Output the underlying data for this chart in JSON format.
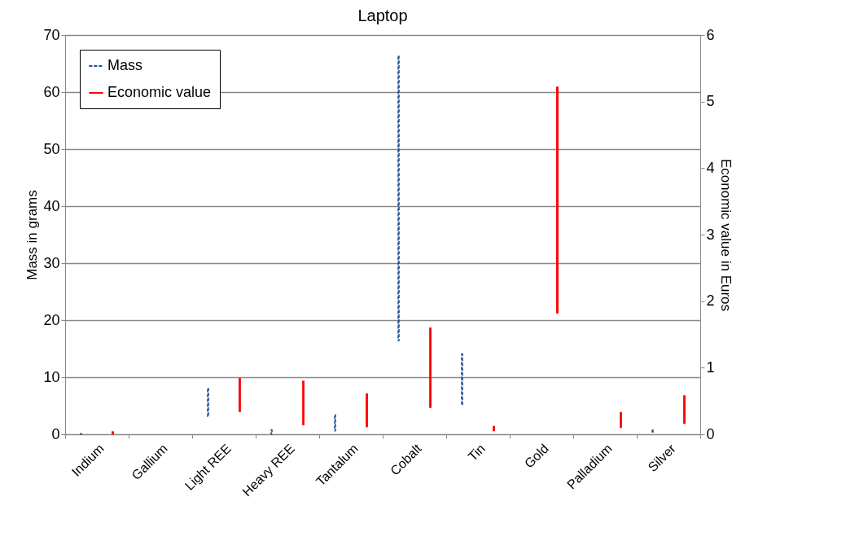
{
  "chart_data": {
    "type": "bar",
    "title": "Laptop",
    "ylabel": "Mass in grams",
    "y2label": "Economic value  in Euros",
    "categories": [
      "Indium",
      "Gallium",
      "Light REE",
      "Heavy REE",
      "Tantalum",
      "Cobalt",
      "Tin",
      "Gold",
      "Palladium",
      "Silver"
    ],
    "series": [
      {
        "name": "Mass",
        "color": "#1f4e8c",
        "line_style": "dashed",
        "base": [
          0,
          null,
          3.1,
          0,
          0.6,
          16.4,
          5.1,
          null,
          null,
          0.2
        ],
        "values": [
          0.1,
          null,
          4.9,
          0.8,
          2.8,
          49.9,
          9,
          null,
          null,
          0.5
        ]
      },
      {
        "name": "Economic value",
        "color": "#ff0000",
        "line_style": "solid",
        "axis": "y2",
        "base": [
          0,
          null,
          0.34,
          0.14,
          0.11,
          0.4,
          0.05,
          1.82,
          0.1,
          0.16
        ],
        "values": [
          0.04,
          null,
          0.5,
          0.66,
          0.5,
          1.2,
          0.07,
          3.4,
          0.23,
          0.42
        ]
      }
    ],
    "ylim": [
      0,
      70
    ],
    "yticks": [
      0,
      10,
      20,
      30,
      40,
      50,
      60,
      70
    ],
    "y2lim": [
      0,
      6
    ],
    "y2ticks": [
      0,
      1,
      2,
      3,
      4,
      5,
      6
    ],
    "grid": "y",
    "legend": "top left"
  }
}
